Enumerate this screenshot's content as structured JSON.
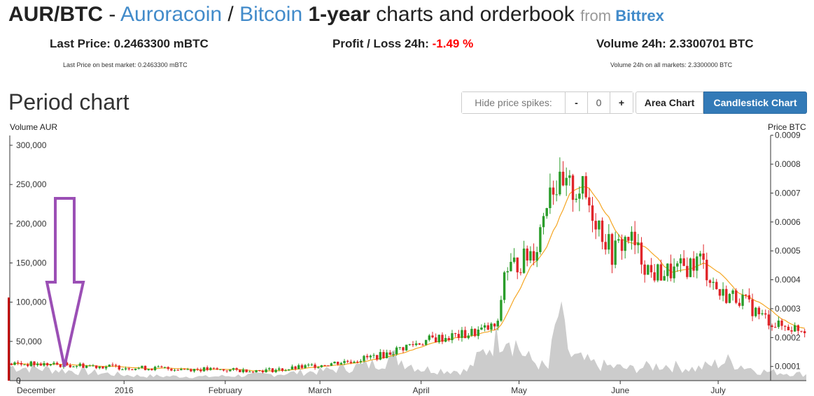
{
  "header": {
    "pair": "AUR/BTC",
    "dash": " - ",
    "coin": "Auroracoin",
    "slash": " / ",
    "base": "Bitcoin",
    "period": "1-year",
    "rest": " charts and orderbook ",
    "from": "from ",
    "exchange": "Bittrex"
  },
  "stats": {
    "last_price_label": "Last Price: ",
    "last_price_value": "0.2463300 mBTC",
    "last_price_sub": "Last Price on best market: 0.2463300 mBTC",
    "profit_label": "Profit / Loss 24h: ",
    "profit_value": "-1.49 %",
    "volume_label": "Volume 24h: ",
    "volume_value": "2.3300701 BTC",
    "volume_sub": "Volume 24h on all markets: 2.3300000 BTC"
  },
  "controls": {
    "section_title": "Period chart",
    "spikes_label": "Hide price spikes:",
    "minus": "-",
    "spikes_value": "0",
    "plus": "+",
    "area_chart": "Area Chart",
    "candlestick_chart": "Candlestick Chart"
  },
  "colors": {
    "up": "#2a9d2a",
    "down": "#e0252a",
    "ma": "#f5a623",
    "volume": "#cccccc",
    "annotation": "#9b4fb5"
  },
  "chart_data": {
    "type": "candlestick",
    "y_left_label": "Volume AUR",
    "y_right_label": "Price BTC",
    "y_left_ticks": [
      "300,000",
      "250,000",
      "200,000",
      "150,000",
      "100,000",
      "50,000",
      "0"
    ],
    "y_right_ticks": [
      "0.0009",
      "0.0008",
      "0.0007",
      "0.0006",
      "0.0005",
      "0.0004",
      "0.0003",
      "0.0002",
      "0.0001"
    ],
    "x_ticks": [
      "December",
      "2016",
      "February",
      "March",
      "April",
      "May",
      "June",
      "July"
    ],
    "y_left_range": [
      0,
      300000
    ],
    "y_right_range": [
      7e-05,
      0.00091
    ],
    "days": 236,
    "price_anchors": [
      [
        0,
        0.00011
      ],
      [
        20,
        0.000105
      ],
      [
        40,
        9.5e-05
      ],
      [
        60,
        9e-05
      ],
      [
        75,
        8.5e-05
      ],
      [
        85,
        9e-05
      ],
      [
        95,
        0.000105
      ],
      [
        105,
        0.00012
      ],
      [
        115,
        0.00014
      ],
      [
        122,
        0.00017
      ],
      [
        130,
        0.000195
      ],
      [
        140,
        0.00021
      ],
      [
        150,
        0.00024
      ],
      [
        152,
        0.00043
      ],
      [
        158,
        0.00047
      ],
      [
        162,
        0.00052
      ],
      [
        166,
        0.00075
      ],
      [
        170,
        0.0007
      ],
      [
        175,
        0.00072
      ],
      [
        180,
        0.00062
      ],
      [
        185,
        0.00049
      ],
      [
        190,
        0.00055
      ],
      [
        197,
        0.00042
      ],
      [
        205,
        0.00043
      ],
      [
        212,
        0.00047
      ],
      [
        218,
        0.00035
      ],
      [
        224,
        0.00034
      ],
      [
        230,
        0.00028
      ],
      [
        236,
        0.00024
      ],
      [
        244,
        0.00023
      ]
    ],
    "volume_anchors": [
      [
        0,
        18000
      ],
      [
        20,
        12000
      ],
      [
        40,
        6000
      ],
      [
        60,
        5000
      ],
      [
        80,
        8000
      ],
      [
        95,
        12000
      ],
      [
        110,
        20000
      ],
      [
        118,
        30000
      ],
      [
        126,
        15000
      ],
      [
        140,
        12000
      ],
      [
        148,
        50000
      ],
      [
        152,
        65000
      ],
      [
        158,
        30000
      ],
      [
        165,
        15000
      ],
      [
        168,
        85000
      ],
      [
        172,
        30000
      ],
      [
        180,
        20000
      ],
      [
        190,
        15000
      ],
      [
        200,
        20000
      ],
      [
        210,
        15000
      ],
      [
        220,
        25000
      ],
      [
        230,
        12000
      ],
      [
        244,
        8000
      ]
    ],
    "month_ticks_day": [
      3,
      35,
      66,
      95,
      126,
      156,
      187,
      217
    ],
    "moving_average_label": "",
    "annotation": "arrow"
  }
}
